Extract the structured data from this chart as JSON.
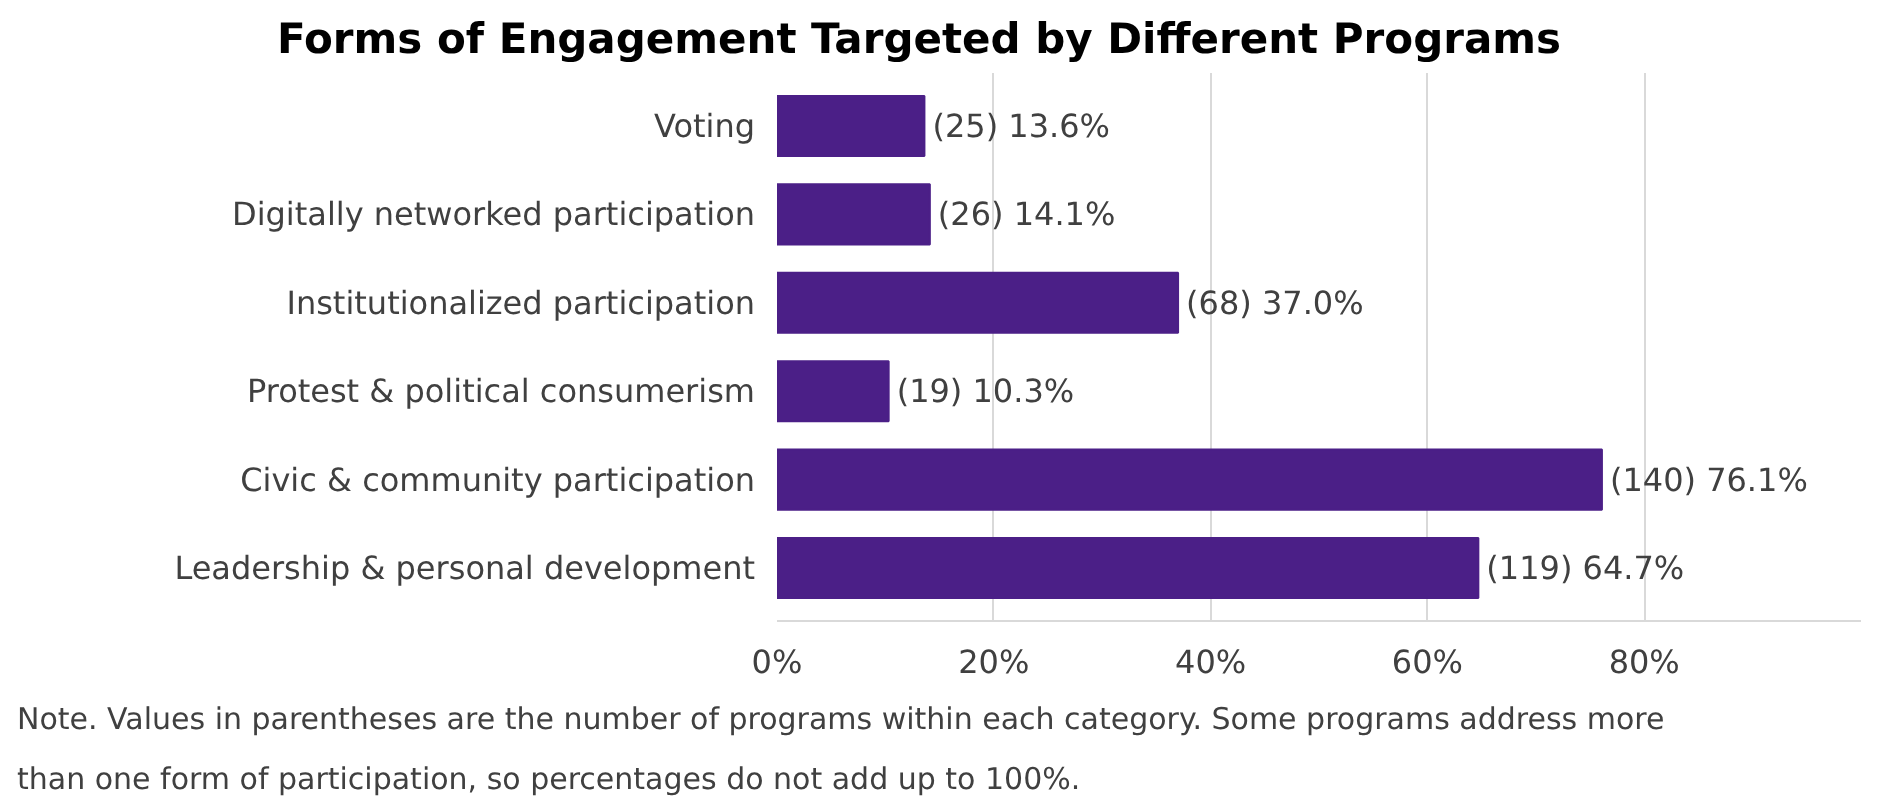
{
  "chart_data": {
    "type": "bar",
    "orientation": "horizontal",
    "title": "Forms of Engagement Targeted by Different Programs",
    "categories": [
      "Voting",
      "Digitally networked participation",
      "Institutionalized participation",
      "Protest & political consumerism",
      "Civic & community participation",
      "Leadership & personal development"
    ],
    "values": [
      13.6,
      14.1,
      37.0,
      10.3,
      76.1,
      64.7
    ],
    "value_labels": [
      "(25) 13.6%",
      "(26) 14.1%",
      "(68) 37.0%",
      "(19) 10.3%",
      "(140) 76.1%",
      "(119) 64.7%"
    ],
    "color": "#4b1f87",
    "xlim": [
      0,
      100
    ],
    "xticks": [
      {
        "value": 0,
        "label": "0%"
      },
      {
        "value": 20,
        "label": "20%"
      },
      {
        "value": 40,
        "label": "40%"
      },
      {
        "value": 60,
        "label": "60%"
      },
      {
        "value": 80,
        "label": "80%"
      }
    ],
    "grid": "x",
    "annotations": [
      "Note. Values in parentheses are the number of programs within each category. Some programs address more than one form of participation, so percentages do not add up to 100%."
    ]
  }
}
